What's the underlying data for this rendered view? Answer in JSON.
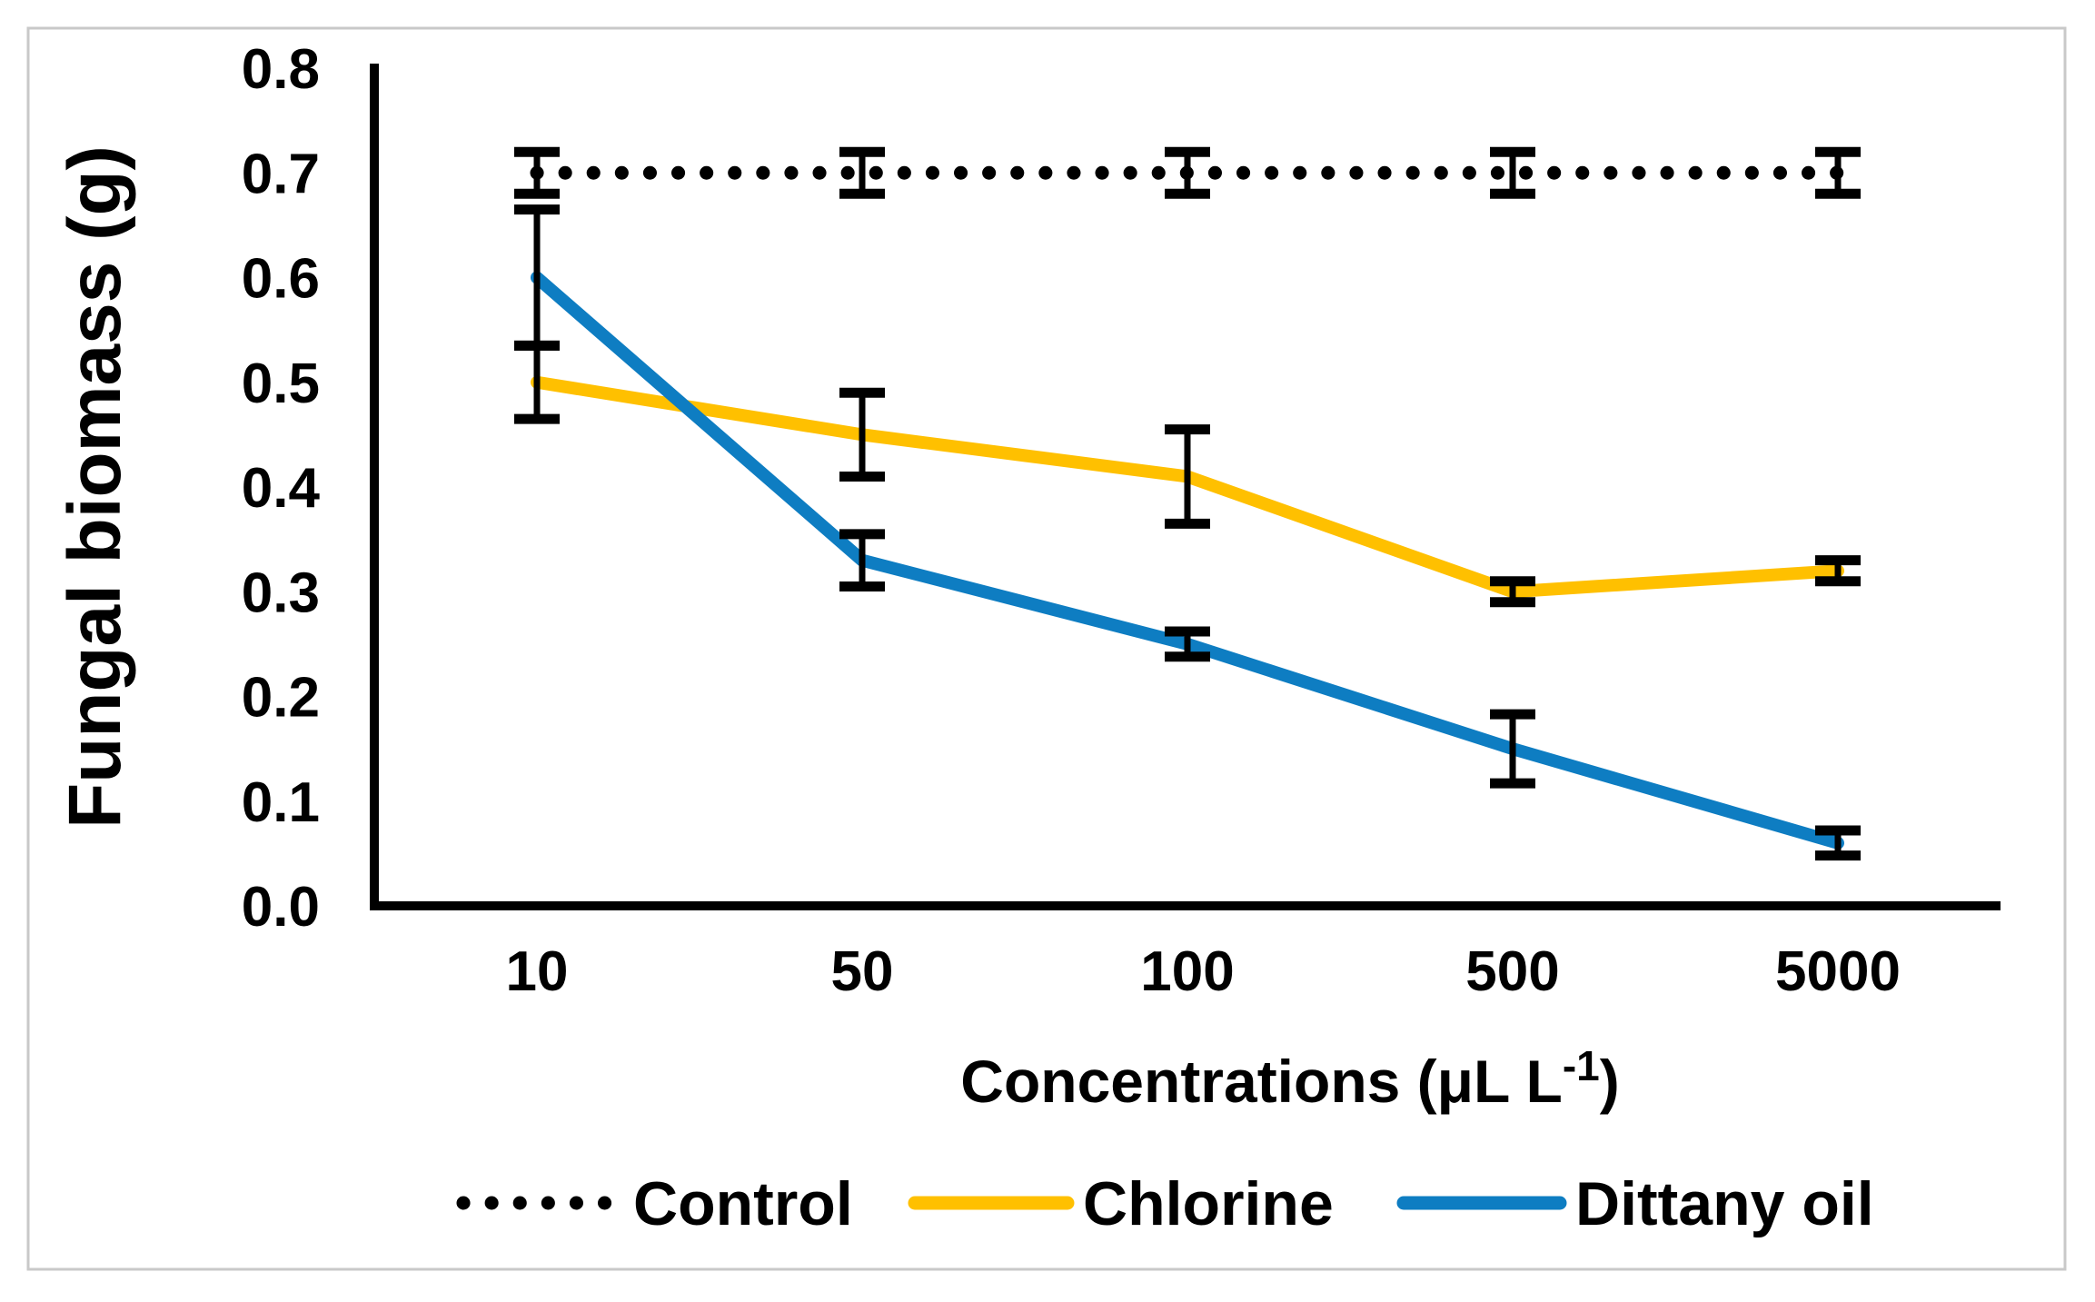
{
  "figure": {
    "background": "#FFFFFF",
    "border_color": "#C9C9C9"
  },
  "chart_data": {
    "type": "line",
    "ylabel": "Fungal biomass (g)",
    "xlabel": {
      "text": "Concentrations (μL L",
      "superscript": "-1",
      "suffix": ")"
    },
    "categories": [
      "10",
      "50",
      "100",
      "500",
      "5000"
    ],
    "ylim": [
      0.0,
      0.8
    ],
    "ytick_step": 0.1,
    "ytick_labels": [
      "0.0",
      "0.1",
      "0.2",
      "0.3",
      "0.4",
      "0.5",
      "0.6",
      "0.7",
      "0.8"
    ],
    "grid": false,
    "legend_position": "bottom",
    "axis_color": "#000000",
    "error_bar_color": "#000000",
    "series": [
      {
        "name": "Control",
        "color": "#000000",
        "style": "dotted",
        "values": [
          0.7,
          0.7,
          0.7,
          0.7,
          0.7
        ],
        "errors": [
          0.02,
          0.02,
          0.02,
          0.02,
          0.02
        ]
      },
      {
        "name": "Chlorine",
        "color": "#FFC000",
        "style": "solid",
        "values": [
          0.5,
          0.45,
          0.41,
          0.3,
          0.32
        ],
        "errors": [
          0.035,
          0.04,
          0.045,
          0.01,
          0.01
        ]
      },
      {
        "name": "Dittany oil",
        "color": "#0E7DC2",
        "style": "solid",
        "values": [
          0.6,
          0.33,
          0.25,
          0.15,
          0.06
        ],
        "errors": [
          0.065,
          0.025,
          0.012,
          0.033,
          0.012
        ]
      }
    ]
  }
}
